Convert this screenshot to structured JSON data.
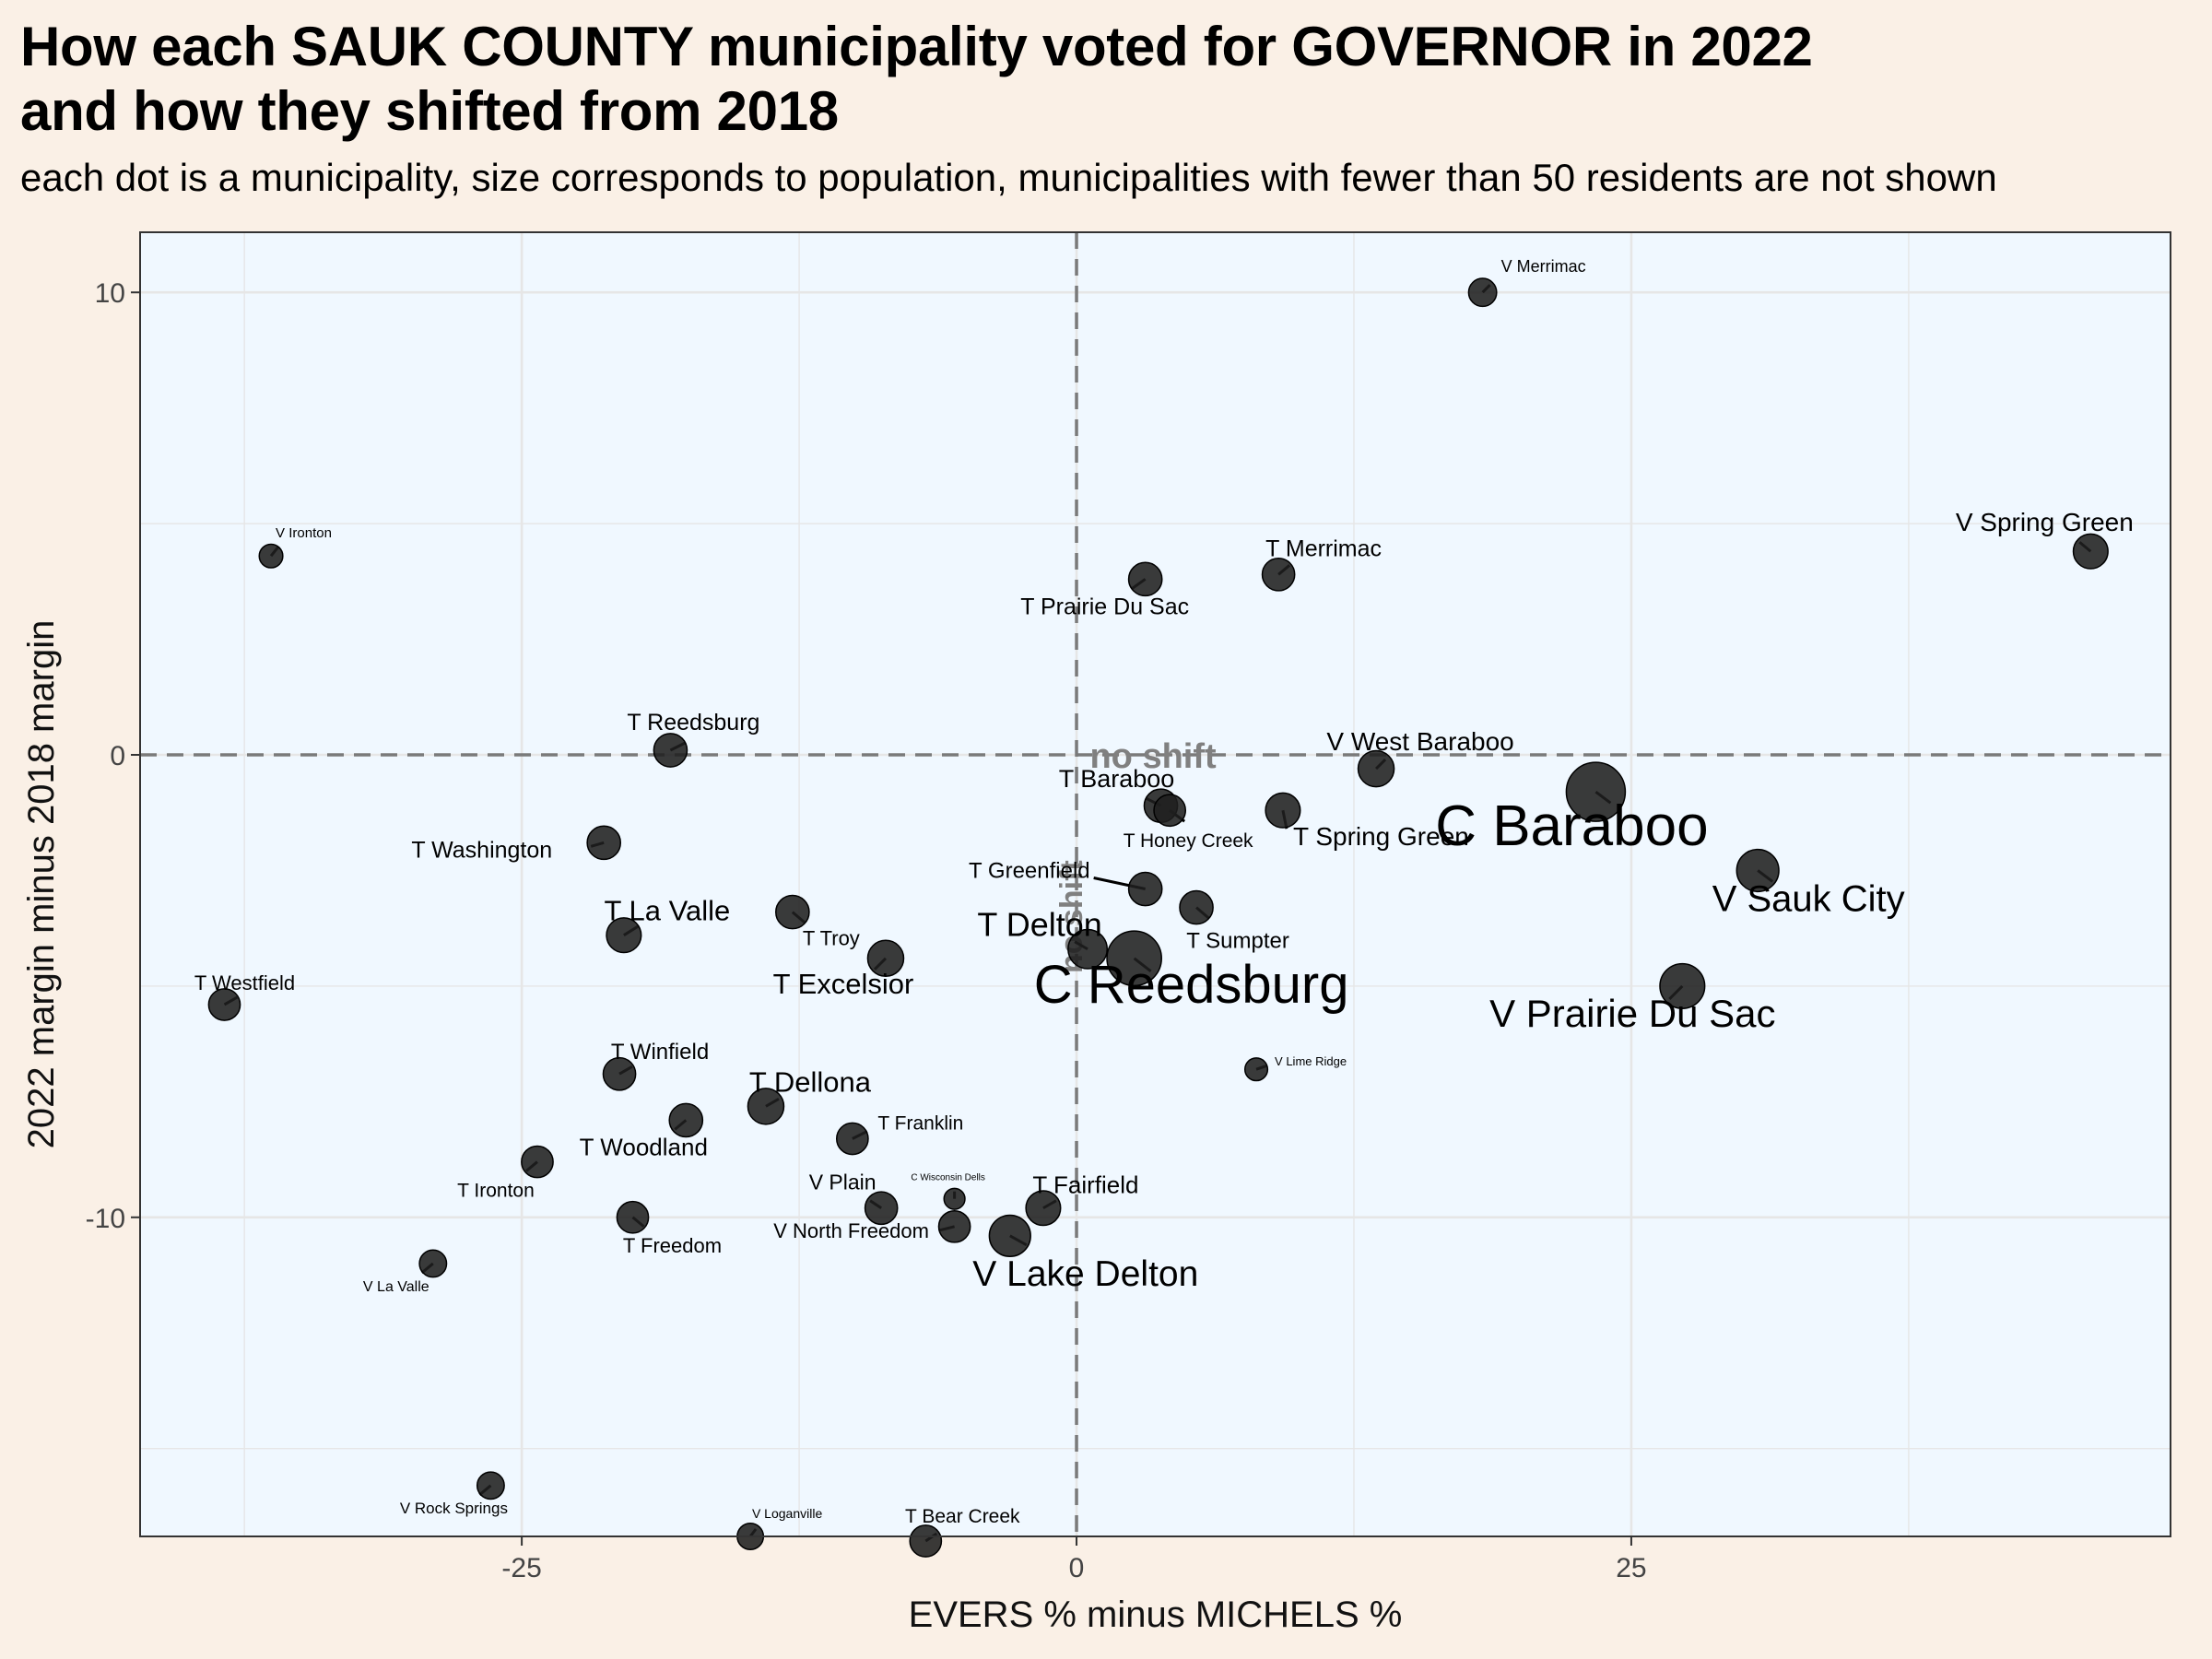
{
  "chart_data": {
    "type": "scatter",
    "title": "How each SAUK COUNTY municipality voted for GOVERNOR in 2022\nand how they shifted from 2018",
    "subtitle": "each dot is a municipality, size corresponds to population, municipalities with fewer than 50 residents are not shown",
    "xlabel": "EVERS % minus MICHELS %",
    "ylabel": "2022 margin minus 2018 margin",
    "xlim": [
      -42.2,
      49.3
    ],
    "ylim": [
      -16.9,
      11.3
    ],
    "x_ticks": [
      -25,
      0,
      25
    ],
    "x_tick_labels": [
      "-25",
      "0",
      "25"
    ],
    "y_ticks": [
      10,
      0,
      -10
    ],
    "y_tick_labels": [
      "10",
      "0",
      "-10"
    ],
    "grid": true,
    "reference_lines": {
      "x": 0,
      "y": 0,
      "style": "dashed"
    },
    "annotations": [
      {
        "text": "no shift",
        "x": 0.6,
        "y": 0.0
      },
      {
        "text": "no shift",
        "x": 0.0,
        "y": -3.5,
        "rotated": true
      }
    ],
    "colors": {
      "panel": "#f0f8ff",
      "background": "#faf0e6",
      "point": "#1f1f1f",
      "grid": "#e6e6e6",
      "reference_line": "#7a7a7a",
      "annotation": "#808080"
    },
    "points": [
      {
        "name": "V Merrimac",
        "x": 18.3,
        "y": 10.0,
        "size": 0.3
      },
      {
        "name": "V Spring Green",
        "x": 45.7,
        "y": 4.4,
        "size": 0.45
      },
      {
        "name": "V Ironton",
        "x": -36.3,
        "y": 4.3,
        "size": 0.2
      },
      {
        "name": "T Merrimac",
        "x": 9.1,
        "y": 3.9,
        "size": 0.4
      },
      {
        "name": "T Prairie Du Sac",
        "x": 3.1,
        "y": 3.8,
        "size": 0.42
      },
      {
        "name": "T Reedsburg",
        "x": -18.3,
        "y": 0.1,
        "size": 0.42
      },
      {
        "name": "V West Baraboo",
        "x": 13.5,
        "y": -0.3,
        "size": 0.48
      },
      {
        "name": "C Baraboo",
        "x": 23.4,
        "y": -0.8,
        "size": 1.0
      },
      {
        "name": "T Baraboo",
        "x": 3.8,
        "y": -1.1,
        "size": 0.42
      },
      {
        "name": "T Honey Creek",
        "x": 4.2,
        "y": -1.2,
        "size": 0.38
      },
      {
        "name": "T Spring Green",
        "x": 9.3,
        "y": -1.2,
        "size": 0.45
      },
      {
        "name": "T Washington",
        "x": -21.3,
        "y": -1.9,
        "size": 0.42
      },
      {
        "name": "V Sauk City",
        "x": 30.7,
        "y": -2.5,
        "size": 0.62
      },
      {
        "name": "T Greenfield",
        "x": 3.1,
        "y": -2.9,
        "size": 0.42
      },
      {
        "name": "T Sumpter",
        "x": 5.4,
        "y": -3.3,
        "size": 0.42
      },
      {
        "name": "T Troy",
        "x": -12.8,
        "y": -3.4,
        "size": 0.42
      },
      {
        "name": "T La Valle",
        "x": -20.4,
        "y": -3.9,
        "size": 0.45
      },
      {
        "name": "T Delton",
        "x": 0.5,
        "y": -4.2,
        "size": 0.55
      },
      {
        "name": "C Reedsburg",
        "x": 2.6,
        "y": -4.4,
        "size": 0.9
      },
      {
        "name": "T Excelsior",
        "x": -8.6,
        "y": -4.4,
        "size": 0.48
      },
      {
        "name": "V Prairie Du Sac",
        "x": 27.3,
        "y": -5.0,
        "size": 0.68
      },
      {
        "name": "T Westfield",
        "x": -38.4,
        "y": -5.4,
        "size": 0.38
      },
      {
        "name": "V Lime Ridge",
        "x": 8.1,
        "y": -6.8,
        "size": 0.18
      },
      {
        "name": "T Winfield",
        "x": -20.6,
        "y": -6.9,
        "size": 0.4
      },
      {
        "name": "T Dellona",
        "x": -14.0,
        "y": -7.6,
        "size": 0.48
      },
      {
        "name": "T Woodland",
        "x": -17.6,
        "y": -7.9,
        "size": 0.42
      },
      {
        "name": "T Franklin",
        "x": -10.1,
        "y": -8.3,
        "size": 0.38
      },
      {
        "name": "T Ironton",
        "x": -24.3,
        "y": -8.8,
        "size": 0.38
      },
      {
        "name": "V Plain",
        "x": -8.8,
        "y": -9.8,
        "size": 0.4
      },
      {
        "name": "C Wisconsin Dells",
        "x": -5.5,
        "y": -9.6,
        "size": 0.14
      },
      {
        "name": "T Fairfield",
        "x": -1.5,
        "y": -9.8,
        "size": 0.45
      },
      {
        "name": "T Freedom",
        "x": -20.0,
        "y": -10.0,
        "size": 0.38
      },
      {
        "name": "V North Freedom",
        "x": -5.5,
        "y": -10.2,
        "size": 0.38
      },
      {
        "name": "V Lake Delton",
        "x": -3.0,
        "y": -10.4,
        "size": 0.6
      },
      {
        "name": "V La Valle",
        "x": -29.0,
        "y": -11.0,
        "size": 0.28
      },
      {
        "name": "V Rock Springs",
        "x": -26.4,
        "y": -15.8,
        "size": 0.28
      },
      {
        "name": "V Loganville",
        "x": -14.7,
        "y": -16.9,
        "size": 0.26
      },
      {
        "name": "T Bear Creek",
        "x": -6.8,
        "y": -17.0,
        "size": 0.38
      }
    ]
  }
}
